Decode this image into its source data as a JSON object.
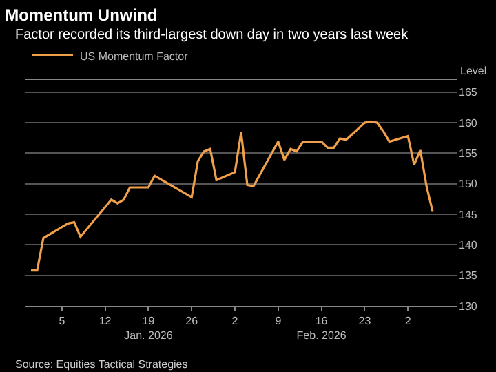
{
  "chart_data": {
    "type": "line",
    "title": "Momentum Unwind",
    "subtitle": "Factor recorded its third-largest down day in two years last week",
    "ylabel": "Level",
    "x": [
      "2025-12-31",
      "2026-01-01",
      "2026-01-02",
      "2026-01-05",
      "2026-01-06",
      "2026-01-07",
      "2026-01-08",
      "2026-01-13",
      "2026-01-14",
      "2026-01-15",
      "2026-01-16",
      "2026-01-19",
      "2026-01-20",
      "2026-01-26",
      "2026-01-27",
      "2026-01-28",
      "2026-01-29",
      "2026-01-30",
      "2026-02-02",
      "2026-02-03",
      "2026-02-04",
      "2026-02-05",
      "2026-02-09",
      "2026-02-10",
      "2026-02-11",
      "2026-02-12",
      "2026-02-13",
      "2026-02-16",
      "2026-02-17",
      "2026-02-18",
      "2026-02-19",
      "2026-02-20",
      "2026-02-23",
      "2026-02-24",
      "2026-02-25",
      "2026-02-26",
      "2026-02-27",
      "2026-03-02",
      "2026-03-03",
      "2026-03-04",
      "2026-03-05",
      "2026-03-06"
    ],
    "series": [
      {
        "name": "US Momentum Factor",
        "color": "#f0a04b",
        "values": [
          135.8,
          135.8,
          141.1,
          142.9,
          143.5,
          143.7,
          141.3,
          147.4,
          146.8,
          147.4,
          149.4,
          149.4,
          151.3,
          147.8,
          153.7,
          155.3,
          155.7,
          150.6,
          151.9,
          158.4,
          149.8,
          149.6,
          156.9,
          153.9,
          155.7,
          155.3,
          156.9,
          156.9,
          155.9,
          155.9,
          157.4,
          157.2,
          160.0,
          160.2,
          160.0,
          158.6,
          156.9,
          157.8,
          153.1,
          155.5,
          149.6,
          145.4
        ]
      }
    ],
    "xlim": [
      "2025-12-30",
      "2026-03-10"
    ],
    "xticks": [
      {
        "value": "2026-01-05",
        "label": "5"
      },
      {
        "value": "2026-01-12",
        "label": "12"
      },
      {
        "value": "2026-01-19",
        "label": "19\nJan. 2026"
      },
      {
        "value": "2026-01-26",
        "label": "26"
      },
      {
        "value": "2026-02-02",
        "label": "2"
      },
      {
        "value": "2026-02-09",
        "label": "9"
      },
      {
        "value": "2026-02-16",
        "label": "16\nFeb. 2026"
      },
      {
        "value": "2026-02-23",
        "label": "23"
      },
      {
        "value": "2026-03-02",
        "label": "2"
      }
    ],
    "ylim": [
      130,
      167
    ],
    "yticks": [
      130,
      135,
      140,
      145,
      150,
      155,
      160,
      165
    ],
    "grid": "y",
    "legend": "top left",
    "marker": "none",
    "line_style": "solid",
    "annotations": [
      "Source: Equities Tactical Strategies"
    ]
  }
}
